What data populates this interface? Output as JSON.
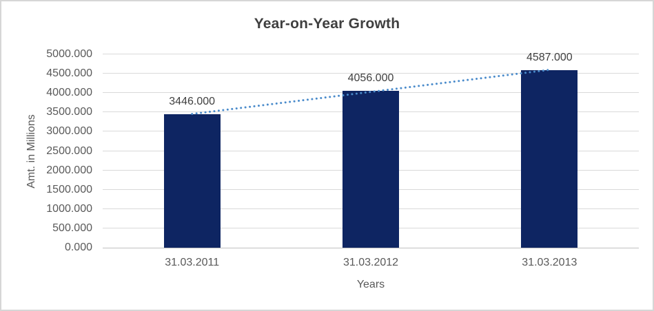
{
  "chart_data": {
    "type": "bar",
    "title": "Year-on-Year Growth",
    "categories": [
      "31.03.2011",
      "31.03.2012",
      "31.03.2013"
    ],
    "values": [
      3446,
      4056,
      4587
    ],
    "value_labels": [
      "3446.000",
      "4056.000",
      "4587.000"
    ],
    "xlabel": "Years",
    "ylabel": "Amt. in Millions",
    "ylim": [
      0,
      5000
    ],
    "ytick_step": 500,
    "ytick_labels": [
      "0.000",
      "500.000",
      "1000.000",
      "1500.000",
      "2000.000",
      "2500.000",
      "3000.000",
      "3500.000",
      "4000.000",
      "4500.000",
      "5000.000"
    ],
    "grid": true,
    "legend_position": "none",
    "bar_color": "#0E2562",
    "trendline": {
      "type": "linear",
      "style": "dotted",
      "color": "#4A8BCB"
    },
    "colors": {
      "title_text": "#3F3F3F",
      "tick_text": "#595959",
      "data_label_text": "#404040",
      "gridline": "#D9D9D9",
      "axis_line": "#BFBFBF",
      "border": "#D6D6D6",
      "background": "#FFFFFF"
    }
  }
}
